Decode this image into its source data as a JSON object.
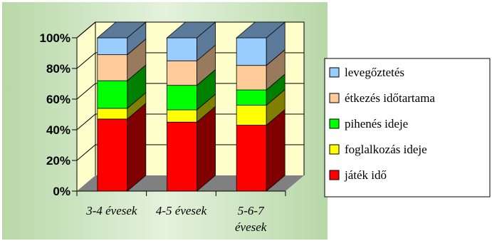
{
  "chart_data": {
    "type": "bar",
    "stacked": true,
    "percent_stacked": true,
    "three_d": true,
    "categories": [
      [
        "3-4 évesek"
      ],
      [
        "4-5 évesek"
      ],
      [
        "5-6-7",
        "évesek"
      ]
    ],
    "series": [
      {
        "name": "játék idő",
        "values": [
          47,
          45,
          43
        ],
        "color": "#ff0000",
        "side_color": "#800000"
      },
      {
        "name": "foglalkozás ideje",
        "values": [
          7,
          8,
          13
        ],
        "color": "#ffff00",
        "side_color": "#808000"
      },
      {
        "name": "pihenés ideje",
        "values": [
          18,
          16,
          10
        ],
        "color": "#00ff00",
        "side_color": "#008000"
      },
      {
        "name": "étkezés időtartama",
        "values": [
          17,
          16,
          16
        ],
        "color": "#ffcc99",
        "side_color": "#997a5c"
      },
      {
        "name": "levegőztetés",
        "values": [
          11,
          15,
          18
        ],
        "color": "#99ccff",
        "side_color": "#5c7a99"
      }
    ],
    "legend_order": [
      "levegőztetés",
      "étkezés időtartama",
      "pihenés ideje",
      "foglalkozás ideje",
      "játék idő"
    ],
    "y_ticks": [
      "0%",
      "20%",
      "40%",
      "60%",
      "80%",
      "100%"
    ],
    "ylim": [
      0,
      100
    ],
    "grid": true,
    "legend_position": "right",
    "wall_color": "#ffffcc",
    "floor_color": "#808080",
    "plot_background": "gradient green"
  }
}
